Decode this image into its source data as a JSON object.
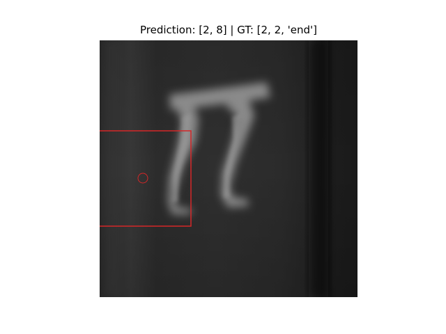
{
  "figure": {
    "title": "Prediction: [2, 8] | GT: [2, 2, 'end']"
  },
  "image": {
    "digits_shown": "22"
  },
  "annotations": {
    "box_color": "#d62728",
    "marker_color": "#d62728"
  }
}
